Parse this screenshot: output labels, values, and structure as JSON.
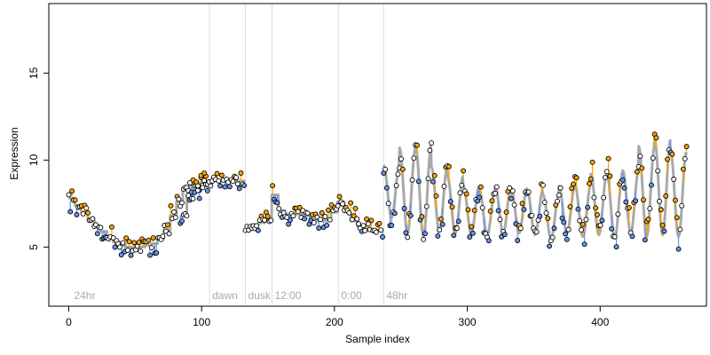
{
  "chart_data": {
    "type": "scatter",
    "xlabel": "Sample index",
    "ylabel": "Expression",
    "xlim": [
      -15,
      480
    ],
    "ylim": [
      1.6,
      19.0
    ],
    "xticks": [
      0,
      100,
      200,
      300,
      400
    ],
    "yticks": [
      5,
      10,
      15
    ],
    "colors": {
      "above": "#ffa500",
      "below": "#6495ed",
      "trend": "#a9a9a9",
      "vline": "#dddddd",
      "annotation": "#aaaaaa"
    },
    "annotations": [
      {
        "x": 2,
        "label": "24hr"
      },
      {
        "x": 106,
        "label": "dawn"
      },
      {
        "x": 133,
        "label": "dusk"
      },
      {
        "x": 153,
        "label": "12:00"
      },
      {
        "x": 203,
        "label": "0:00"
      },
      {
        "x": 237,
        "label": "48hr"
      }
    ],
    "vlines": [
      106,
      133,
      153,
      203,
      237
    ],
    "segments": [
      {
        "x0": 0,
        "x1": 105,
        "kind": "step",
        "values": [
          7.8,
          7.4,
          7.0,
          6.6,
          6.2,
          5.9,
          5.6,
          5.3,
          5.1,
          5.0,
          5.0,
          5.0,
          5.1,
          5.2,
          5.5,
          6.0,
          6.8,
          7.6,
          8.3,
          8.6,
          8.7,
          8.7
        ]
      },
      {
        "x0": 84,
        "x1": 133,
        "kind": "step",
        "values": [
          6.8,
          8.0,
          8.4,
          8.6,
          8.7,
          8.8,
          8.8,
          8.8,
          8.8,
          8.8
        ]
      },
      {
        "x0": 133,
        "x1": 237,
        "kind": "step",
        "values": [
          6.2,
          6.3,
          6.4,
          6.5,
          8.0,
          7.1,
          6.9,
          6.9,
          6.9,
          6.8,
          6.6,
          6.5,
          6.6,
          7.0,
          7.6,
          7.0,
          6.5,
          6.2,
          6.1,
          6.0,
          6.0
        ]
      },
      {
        "x0": 237,
        "x1": 465,
        "kind": "oscillation",
        "period": 12,
        "base": 7.6,
        "amplitude": 1.9,
        "peaks": [
          9.7,
          10.7,
          10.9,
          9.6,
          9.1,
          8.5,
          8.3,
          8.5,
          8.4,
          8.3,
          8.0,
          8.5,
          8.6,
          9.2,
          9.3,
          9.4,
          10.8,
          11.2,
          10.5,
          10.3,
          10.1,
          10.3,
          10.5,
          10.0,
          8.0
        ],
        "troughs": [
          6.7,
          5.8,
          5.6,
          5.9,
          5.8,
          5.8,
          5.7,
          5.8,
          5.8,
          5.7,
          5.5,
          5.8,
          5.6,
          5.7,
          5.5,
          5.8,
          5.6,
          5.7,
          5.6,
          5.5,
          5.4,
          5.6,
          5.8,
          5.6,
          5.8
        ]
      }
    ]
  }
}
